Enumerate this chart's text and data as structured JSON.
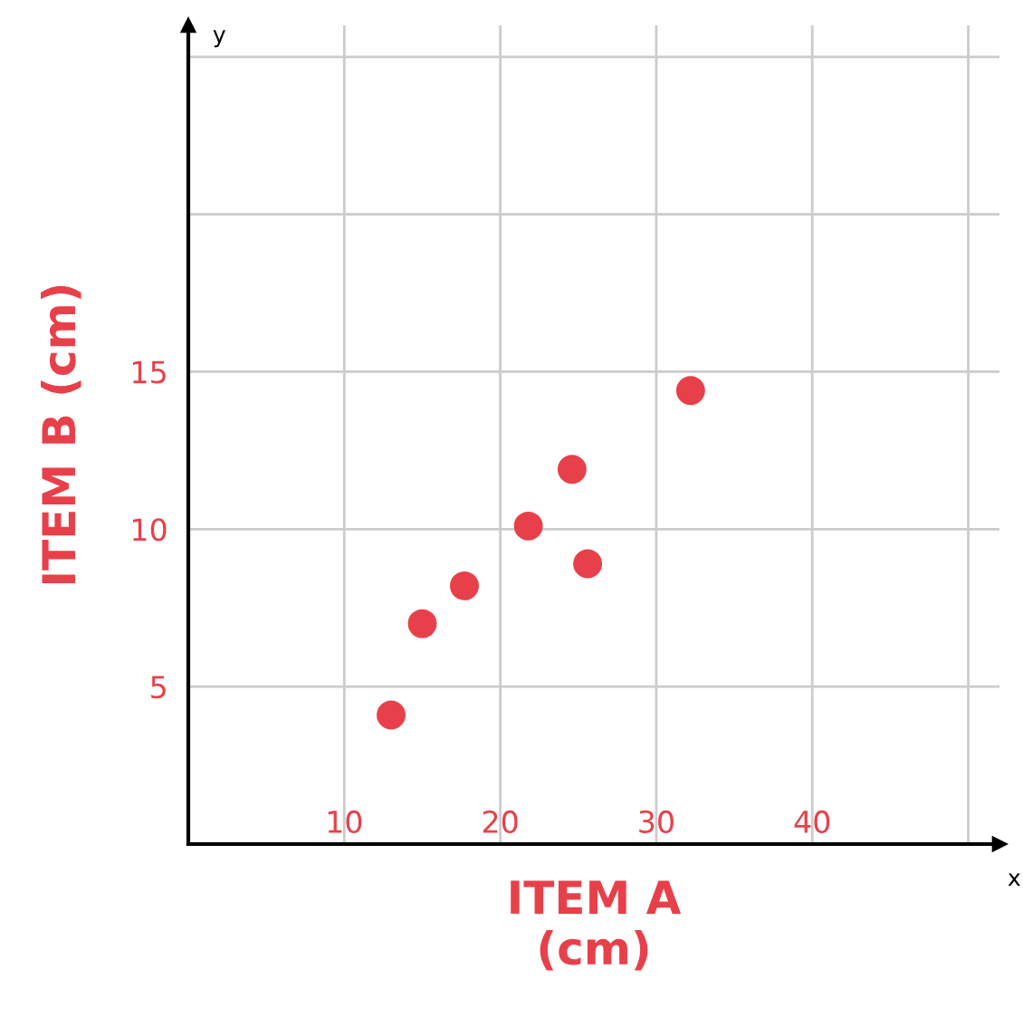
{
  "chart_data": {
    "type": "scatter",
    "xlabel": "ITEM A\n(cm)",
    "ylabel": "ITEM B (cm)",
    "annotations": [
      "y",
      "x"
    ],
    "x": [
      13.0,
      15.0,
      17.7,
      21.8,
      24.6,
      25.6,
      32.2
    ],
    "series": [
      {
        "color": "#e8404a",
        "values": [
          4.1,
          7.0,
          8.2,
          10.1,
          11.9,
          8.9,
          14.4
        ]
      }
    ],
    "xlim": [
      0,
      52
    ],
    "ylim": [
      0,
      26
    ],
    "xticks": [
      10,
      20,
      30,
      40,
      {
        "value": 50,
        "label": null
      }
    ],
    "yticks": [
      5,
      10,
      15,
      {
        "value": 20,
        "label": null
      },
      {
        "value": 25,
        "label": null
      }
    ],
    "grid": true,
    "marker": "circle"
  }
}
